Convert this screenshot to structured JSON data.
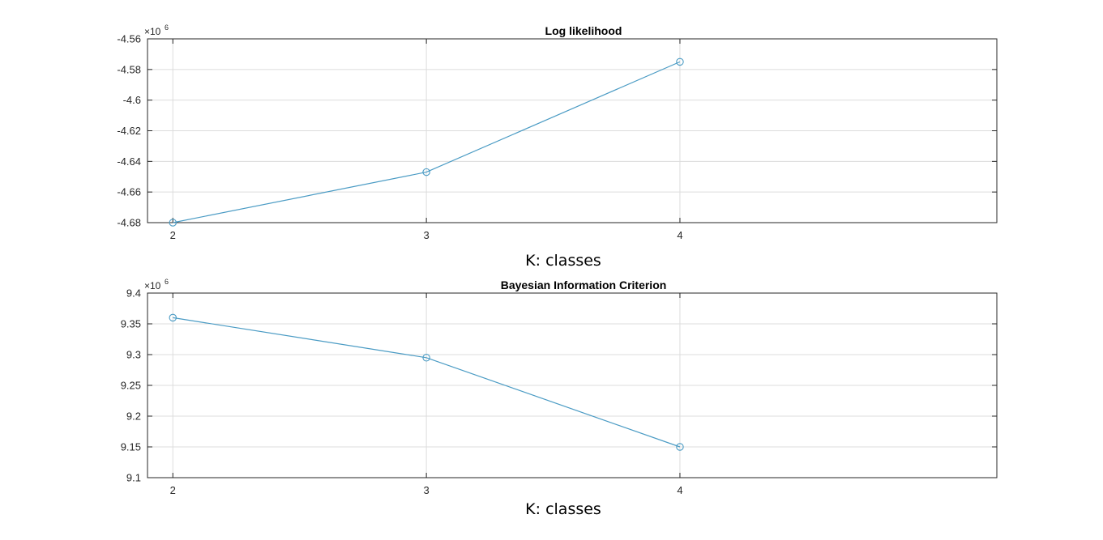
{
  "colors": {
    "series": "#4a9bc4",
    "axis": "#262626",
    "grid": "#dcdcdc"
  },
  "chart_data": [
    {
      "type": "line",
      "title": "Log likelihood",
      "xlabel": "K: classes",
      "ylabel": "",
      "exponent_base": "×10",
      "exponent_power": "6",
      "x": [
        2,
        3,
        4
      ],
      "xlim": [
        1.9,
        5.25
      ],
      "xticks": [
        "2",
        "3",
        "4"
      ],
      "ylim": [
        -4.68,
        -4.56
      ],
      "yticks": [
        "-4.56",
        "-4.58",
        "-4.6",
        "-4.62",
        "-4.64",
        "-4.66",
        "-4.68"
      ],
      "grid": true,
      "marker": "circle",
      "series": [
        {
          "values": [
            -4.68,
            -4.647,
            -4.575
          ]
        }
      ]
    },
    {
      "type": "line",
      "title": "Bayesian Information Criterion",
      "xlabel": "K: classes",
      "ylabel": "",
      "exponent_base": "×10",
      "exponent_power": "6",
      "x": [
        2,
        3,
        4
      ],
      "xlim": [
        1.9,
        5.25
      ],
      "xticks": [
        "2",
        "3",
        "4"
      ],
      "ylim": [
        9.1,
        9.4
      ],
      "yticks": [
        "9.4",
        "9.35",
        "9.3",
        "9.25",
        "9.2",
        "9.15",
        "9.1"
      ],
      "grid": true,
      "marker": "circle",
      "series": [
        {
          "values": [
            9.36,
            9.295,
            9.15
          ]
        }
      ]
    }
  ]
}
